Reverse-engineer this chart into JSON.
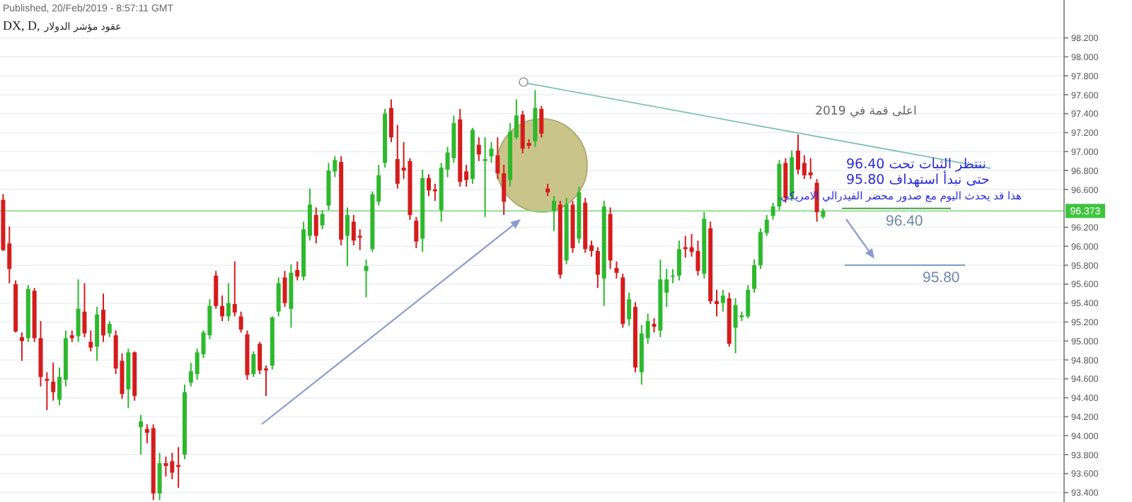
{
  "chart_data": {
    "type": "candlestick",
    "title": "DX, D,",
    "subtitle": "عقود مؤشر الدولار",
    "categories": [
      null,
      null,
      null,
      null,
      null,
      null,
      null,
      null,
      null,
      null,
      null,
      null,
      null,
      null,
      null,
      null,
      null,
      null,
      null,
      null,
      null,
      null,
      null,
      null,
      null,
      null,
      null,
      null,
      null,
      null,
      null,
      null,
      null,
      null,
      null,
      null,
      null,
      null,
      null,
      null,
      null,
      null,
      null,
      null,
      null,
      null,
      null,
      null,
      null,
      null,
      null,
      null,
      null,
      null,
      null,
      null,
      null,
      null,
      null,
      null,
      null,
      null,
      null,
      null,
      null,
      null,
      null,
      null,
      null,
      null,
      null,
      null,
      null,
      null,
      null,
      null,
      null,
      null,
      null,
      null,
      null,
      null,
      null,
      null,
      null,
      null,
      null,
      null,
      null,
      null,
      null,
      null,
      null,
      null,
      null,
      null,
      null,
      null,
      null,
      null,
      null,
      null,
      null,
      null,
      null,
      null,
      null,
      null,
      null,
      null,
      null,
      null,
      null,
      null,
      null,
      null,
      null,
      null,
      null,
      null,
      null,
      null,
      null,
      null,
      null,
      null,
      null,
      null,
      null,
      null,
      null,
      null,
      null,
      null,
      null,
      null,
      null,
      null,
      null,
      null,
      null,
      null,
      null,
      null,
      null,
      null,
      null,
      null,
      null,
      null,
      null,
      null,
      null,
      null,
      null,
      null,
      null,
      null,
      null,
      null,
      null,
      null,
      null,
      null,
      null,
      null,
      null,
      null,
      null,
      null
    ],
    "ohlc": [
      [
        96.49,
        96.55,
        95.95,
        95.96
      ],
      [
        96.03,
        96.21,
        95.61,
        95.76
      ],
      [
        95.6,
        95.64,
        95.09,
        95.1
      ],
      [
        95.04,
        95.09,
        94.79,
        95.0
      ],
      [
        95.03,
        95.59,
        94.99,
        95.55
      ],
      [
        95.53,
        95.56,
        94.99,
        95.03
      ],
      [
        95.03,
        95.21,
        94.52,
        94.62
      ],
      [
        94.6,
        94.67,
        94.27,
        94.58
      ],
      [
        94.57,
        94.77,
        94.37,
        94.46
      ],
      [
        94.38,
        94.72,
        94.32,
        94.62
      ],
      [
        94.59,
        95.11,
        94.52,
        95.03
      ],
      [
        95.06,
        95.11,
        94.99,
        95.03
      ],
      [
        95.05,
        95.65,
        94.99,
        95.34
      ],
      [
        95.31,
        95.61,
        95.04,
        95.08
      ],
      [
        94.99,
        95.11,
        94.89,
        94.93
      ],
      [
        94.94,
        95.36,
        94.79,
        95.28
      ],
      [
        95.33,
        95.5,
        94.99,
        95.06
      ],
      [
        95.08,
        95.21,
        95.04,
        95.18
      ],
      [
        95.06,
        95.11,
        94.65,
        94.71
      ],
      [
        94.79,
        94.87,
        94.39,
        94.44
      ],
      [
        94.49,
        94.92,
        94.29,
        94.88
      ],
      [
        94.88,
        94.89,
        94.37,
        94.42
      ],
      [
        94.09,
        94.22,
        93.8,
        94.15
      ],
      [
        94.07,
        94.12,
        93.92,
        94.03
      ],
      [
        94.08,
        94.12,
        93.32,
        93.39
      ],
      [
        93.39,
        93.82,
        93.32,
        93.71
      ],
      [
        93.71,
        93.78,
        93.57,
        93.68
      ],
      [
        93.73,
        93.82,
        93.54,
        93.61
      ],
      [
        93.69,
        93.88,
        93.45,
        93.67
      ],
      [
        93.8,
        94.54,
        93.75,
        94.46
      ],
      [
        94.56,
        94.77,
        94.52,
        94.68
      ],
      [
        94.65,
        94.92,
        94.59,
        94.88
      ],
      [
        94.86,
        95.11,
        94.82,
        95.09
      ],
      [
        95.06,
        95.44,
        95.02,
        95.37
      ],
      [
        95.69,
        95.74,
        95.34,
        95.37
      ],
      [
        95.37,
        95.48,
        95.21,
        95.26
      ],
      [
        95.26,
        95.61,
        95.21,
        95.4
      ],
      [
        95.39,
        95.84,
        95.26,
        95.3
      ],
      [
        95.26,
        95.31,
        95.09,
        95.12
      ],
      [
        95.07,
        95.11,
        94.59,
        94.64
      ],
      [
        94.65,
        94.89,
        94.62,
        94.86
      ],
      [
        94.97,
        94.99,
        94.65,
        94.69
      ],
      [
        94.71,
        94.74,
        94.42,
        94.69
      ],
      [
        94.74,
        95.26,
        94.7,
        95.25
      ],
      [
        95.31,
        95.67,
        95.26,
        95.61
      ],
      [
        95.67,
        95.74,
        95.36,
        95.4
      ],
      [
        95.34,
        95.81,
        95.14,
        95.72
      ],
      [
        95.75,
        95.84,
        95.64,
        95.68
      ],
      [
        95.68,
        96.26,
        95.64,
        96.18
      ],
      [
        96.11,
        96.61,
        96.06,
        96.44
      ],
      [
        96.33,
        96.41,
        96.03,
        96.11
      ],
      [
        96.22,
        96.38,
        96.18,
        96.34
      ],
      [
        96.43,
        96.88,
        96.38,
        96.8
      ],
      [
        96.79,
        96.95,
        96.73,
        96.91
      ],
      [
        96.89,
        96.95,
        96.01,
        96.07
      ],
      [
        96.11,
        96.41,
        95.79,
        96.33
      ],
      [
        96.26,
        96.33,
        96.01,
        96.06
      ],
      [
        96.11,
        96.18,
        95.96,
        96.09
      ],
      [
        95.74,
        95.86,
        95.46,
        95.79
      ],
      [
        95.97,
        96.58,
        95.94,
        96.55
      ],
      [
        96.47,
        96.86,
        96.43,
        96.75
      ],
      [
        96.88,
        97.45,
        96.83,
        97.4
      ],
      [
        97.46,
        97.55,
        97.1,
        97.15
      ],
      [
        96.92,
        97.28,
        96.61,
        96.66
      ],
      [
        96.83,
        97.1,
        96.71,
        96.8
      ],
      [
        96.9,
        96.93,
        96.28,
        96.33
      ],
      [
        96.27,
        96.31,
        95.98,
        96.05
      ],
      [
        96.08,
        96.81,
        95.94,
        96.72
      ],
      [
        96.72,
        96.76,
        96.53,
        96.59
      ],
      [
        96.6,
        96.66,
        96.48,
        96.58
      ],
      [
        96.38,
        96.88,
        96.26,
        96.83
      ],
      [
        96.81,
        97.05,
        96.73,
        96.99
      ],
      [
        96.93,
        97.38,
        96.88,
        97.3
      ],
      [
        97.34,
        97.45,
        96.63,
        96.68
      ],
      [
        96.79,
        96.86,
        96.63,
        96.7
      ],
      [
        96.71,
        97.25,
        96.66,
        97.23
      ],
      [
        97.07,
        97.15,
        96.9,
        96.97
      ],
      [
        96.9,
        97.15,
        96.31,
        96.92
      ],
      [
        96.95,
        97.1,
        96.88,
        97.03
      ],
      [
        96.96,
        97.15,
        96.71,
        96.77
      ],
      [
        96.77,
        96.86,
        96.33,
        96.47
      ],
      [
        96.7,
        97.3,
        96.63,
        97.21
      ],
      [
        97.15,
        97.55,
        97.13,
        97.38
      ],
      [
        97.39,
        97.43,
        96.98,
        97.03
      ],
      [
        97.09,
        97.13,
        97.03,
        97.06
      ],
      [
        97.11,
        97.65,
        97.05,
        97.46
      ],
      [
        97.45,
        97.48,
        97.15,
        97.19
      ],
      [
        96.61,
        96.66,
        96.53,
        96.57
      ],
      [
        96.37,
        96.53,
        96.16,
        96.48
      ],
      [
        96.44,
        96.48,
        95.66,
        95.7
      ],
      [
        95.85,
        96.51,
        95.81,
        96.44
      ],
      [
        96.44,
        96.48,
        95.93,
        95.98
      ],
      [
        96.08,
        96.63,
        96.03,
        96.57
      ],
      [
        96.46,
        96.51,
        95.93,
        95.97
      ],
      [
        96.01,
        96.06,
        95.89,
        95.95
      ],
      [
        95.95,
        95.99,
        95.56,
        95.7
      ],
      [
        95.66,
        96.48,
        95.37,
        96.42
      ],
      [
        96.34,
        96.41,
        95.76,
        95.85
      ],
      [
        95.77,
        95.84,
        95.66,
        95.72
      ],
      [
        95.67,
        95.71,
        95.14,
        95.18
      ],
      [
        95.23,
        95.51,
        95.16,
        95.44
      ],
      [
        95.36,
        95.41,
        94.67,
        94.72
      ],
      [
        94.67,
        95.17,
        94.54,
        95.08
      ],
      [
        95.03,
        95.29,
        94.97,
        95.21
      ],
      [
        95.18,
        95.24,
        95.09,
        95.15
      ],
      [
        95.11,
        95.86,
        95.04,
        95.65
      ],
      [
        95.51,
        95.76,
        95.36,
        95.65
      ],
      [
        95.68,
        95.76,
        95.61,
        95.69
      ],
      [
        95.69,
        96.06,
        95.64,
        95.97
      ],
      [
        95.99,
        96.11,
        95.88,
        95.97
      ],
      [
        95.99,
        96.13,
        95.89,
        95.94
      ],
      [
        95.95,
        96.06,
        95.69,
        95.74
      ],
      [
        95.71,
        96.36,
        95.66,
        96.29
      ],
      [
        96.19,
        96.26,
        95.39,
        95.42
      ],
      [
        95.42,
        95.54,
        95.26,
        95.39
      ],
      [
        95.4,
        95.54,
        95.31,
        95.48
      ],
      [
        95.45,
        95.51,
        94.94,
        94.97
      ],
      [
        95.14,
        95.45,
        94.87,
        95.38
      ],
      [
        95.25,
        95.31,
        95.21,
        95.27
      ],
      [
        95.26,
        95.59,
        95.24,
        95.54
      ],
      [
        95.55,
        95.86,
        95.51,
        95.8
      ],
      [
        95.8,
        96.19,
        95.76,
        96.15
      ],
      [
        96.14,
        96.33,
        96.11,
        96.28
      ],
      [
        96.32,
        96.46,
        96.28,
        96.42
      ],
      [
        96.42,
        96.91,
        96.38,
        96.87
      ],
      [
        96.88,
        96.93,
        96.46,
        96.51
      ],
      [
        96.52,
        97.01,
        96.48,
        96.94
      ],
      [
        97.01,
        97.18,
        96.76,
        96.81
      ],
      [
        96.88,
        96.96,
        96.71,
        96.75
      ],
      [
        96.78,
        96.93,
        96.71,
        96.75
      ],
      [
        96.67,
        96.71,
        96.26,
        96.36
      ],
      [
        96.31,
        96.4,
        96.29,
        96.37
      ],
      null,
      null,
      null,
      null,
      null,
      null,
      null,
      null,
      null,
      null,
      null,
      null,
      null,
      null,
      null,
      null,
      null,
      null,
      null,
      null,
      null,
      null,
      null,
      null,
      null,
      null,
      null,
      null,
      null,
      null,
      null,
      null,
      null,
      null,
      null,
      null,
      null,
      null
    ],
    "ylim": [
      93.3,
      98.6
    ],
    "yticks": [
      {
        "value": 93.4,
        "label": "93.400"
      },
      {
        "value": 93.6,
        "label": "93.600"
      },
      {
        "value": 93.8,
        "label": "93.800"
      },
      {
        "value": 94.0,
        "label": "94.000"
      },
      {
        "value": 94.2,
        "label": "94.200"
      },
      {
        "value": 94.4,
        "label": "94.400"
      },
      {
        "value": 94.6,
        "label": "94.600"
      },
      {
        "value": 94.8,
        "label": "94.800"
      },
      {
        "value": 95.0,
        "label": "95.000"
      },
      {
        "value": 95.2,
        "label": "95.200"
      },
      {
        "value": 95.4,
        "label": "95.400"
      },
      {
        "value": 95.6,
        "label": "95.600"
      },
      {
        "value": 95.8,
        "label": "95.800"
      },
      {
        "value": 96.0,
        "label": "96.000"
      },
      {
        "value": 96.2,
        "label": "96.200"
      },
      {
        "value": 96.6,
        "label": "96.600"
      },
      {
        "value": 96.8,
        "label": "96.800"
      },
      {
        "value": 97.0,
        "label": "97.000"
      },
      {
        "value": 97.2,
        "label": "97.200"
      },
      {
        "value": 97.4,
        "label": "97.400"
      },
      {
        "value": 97.6,
        "label": "97.600"
      },
      {
        "value": 97.8,
        "label": "97.800"
      },
      {
        "value": 98.0,
        "label": "98.000"
      },
      {
        "value": 98.2,
        "label": "98.200"
      }
    ],
    "grid": "y",
    "ref_lines": [
      {
        "axis": "y",
        "value": 96.373,
        "label": "96.373",
        "color": "#84dc84"
      },
      {
        "axis": "y",
        "value": 96.4,
        "label": "96.40",
        "color": "#4a9a4a"
      },
      {
        "axis": "y",
        "value": 95.8,
        "label": "95.80",
        "color": "#7d9cc0"
      }
    ],
    "annotations": [
      "Published, 20/Feb/2019 - 8:57:11 GMT",
      "اعلى قمة في 2019",
      "ننتظر الثبات تحت 96.40",
      "حتى نبدأ استهداف 95.80",
      "هذا قد يحدث اليوم مع صدور محضر الفيدرالي الامريكي."
    ]
  }
}
